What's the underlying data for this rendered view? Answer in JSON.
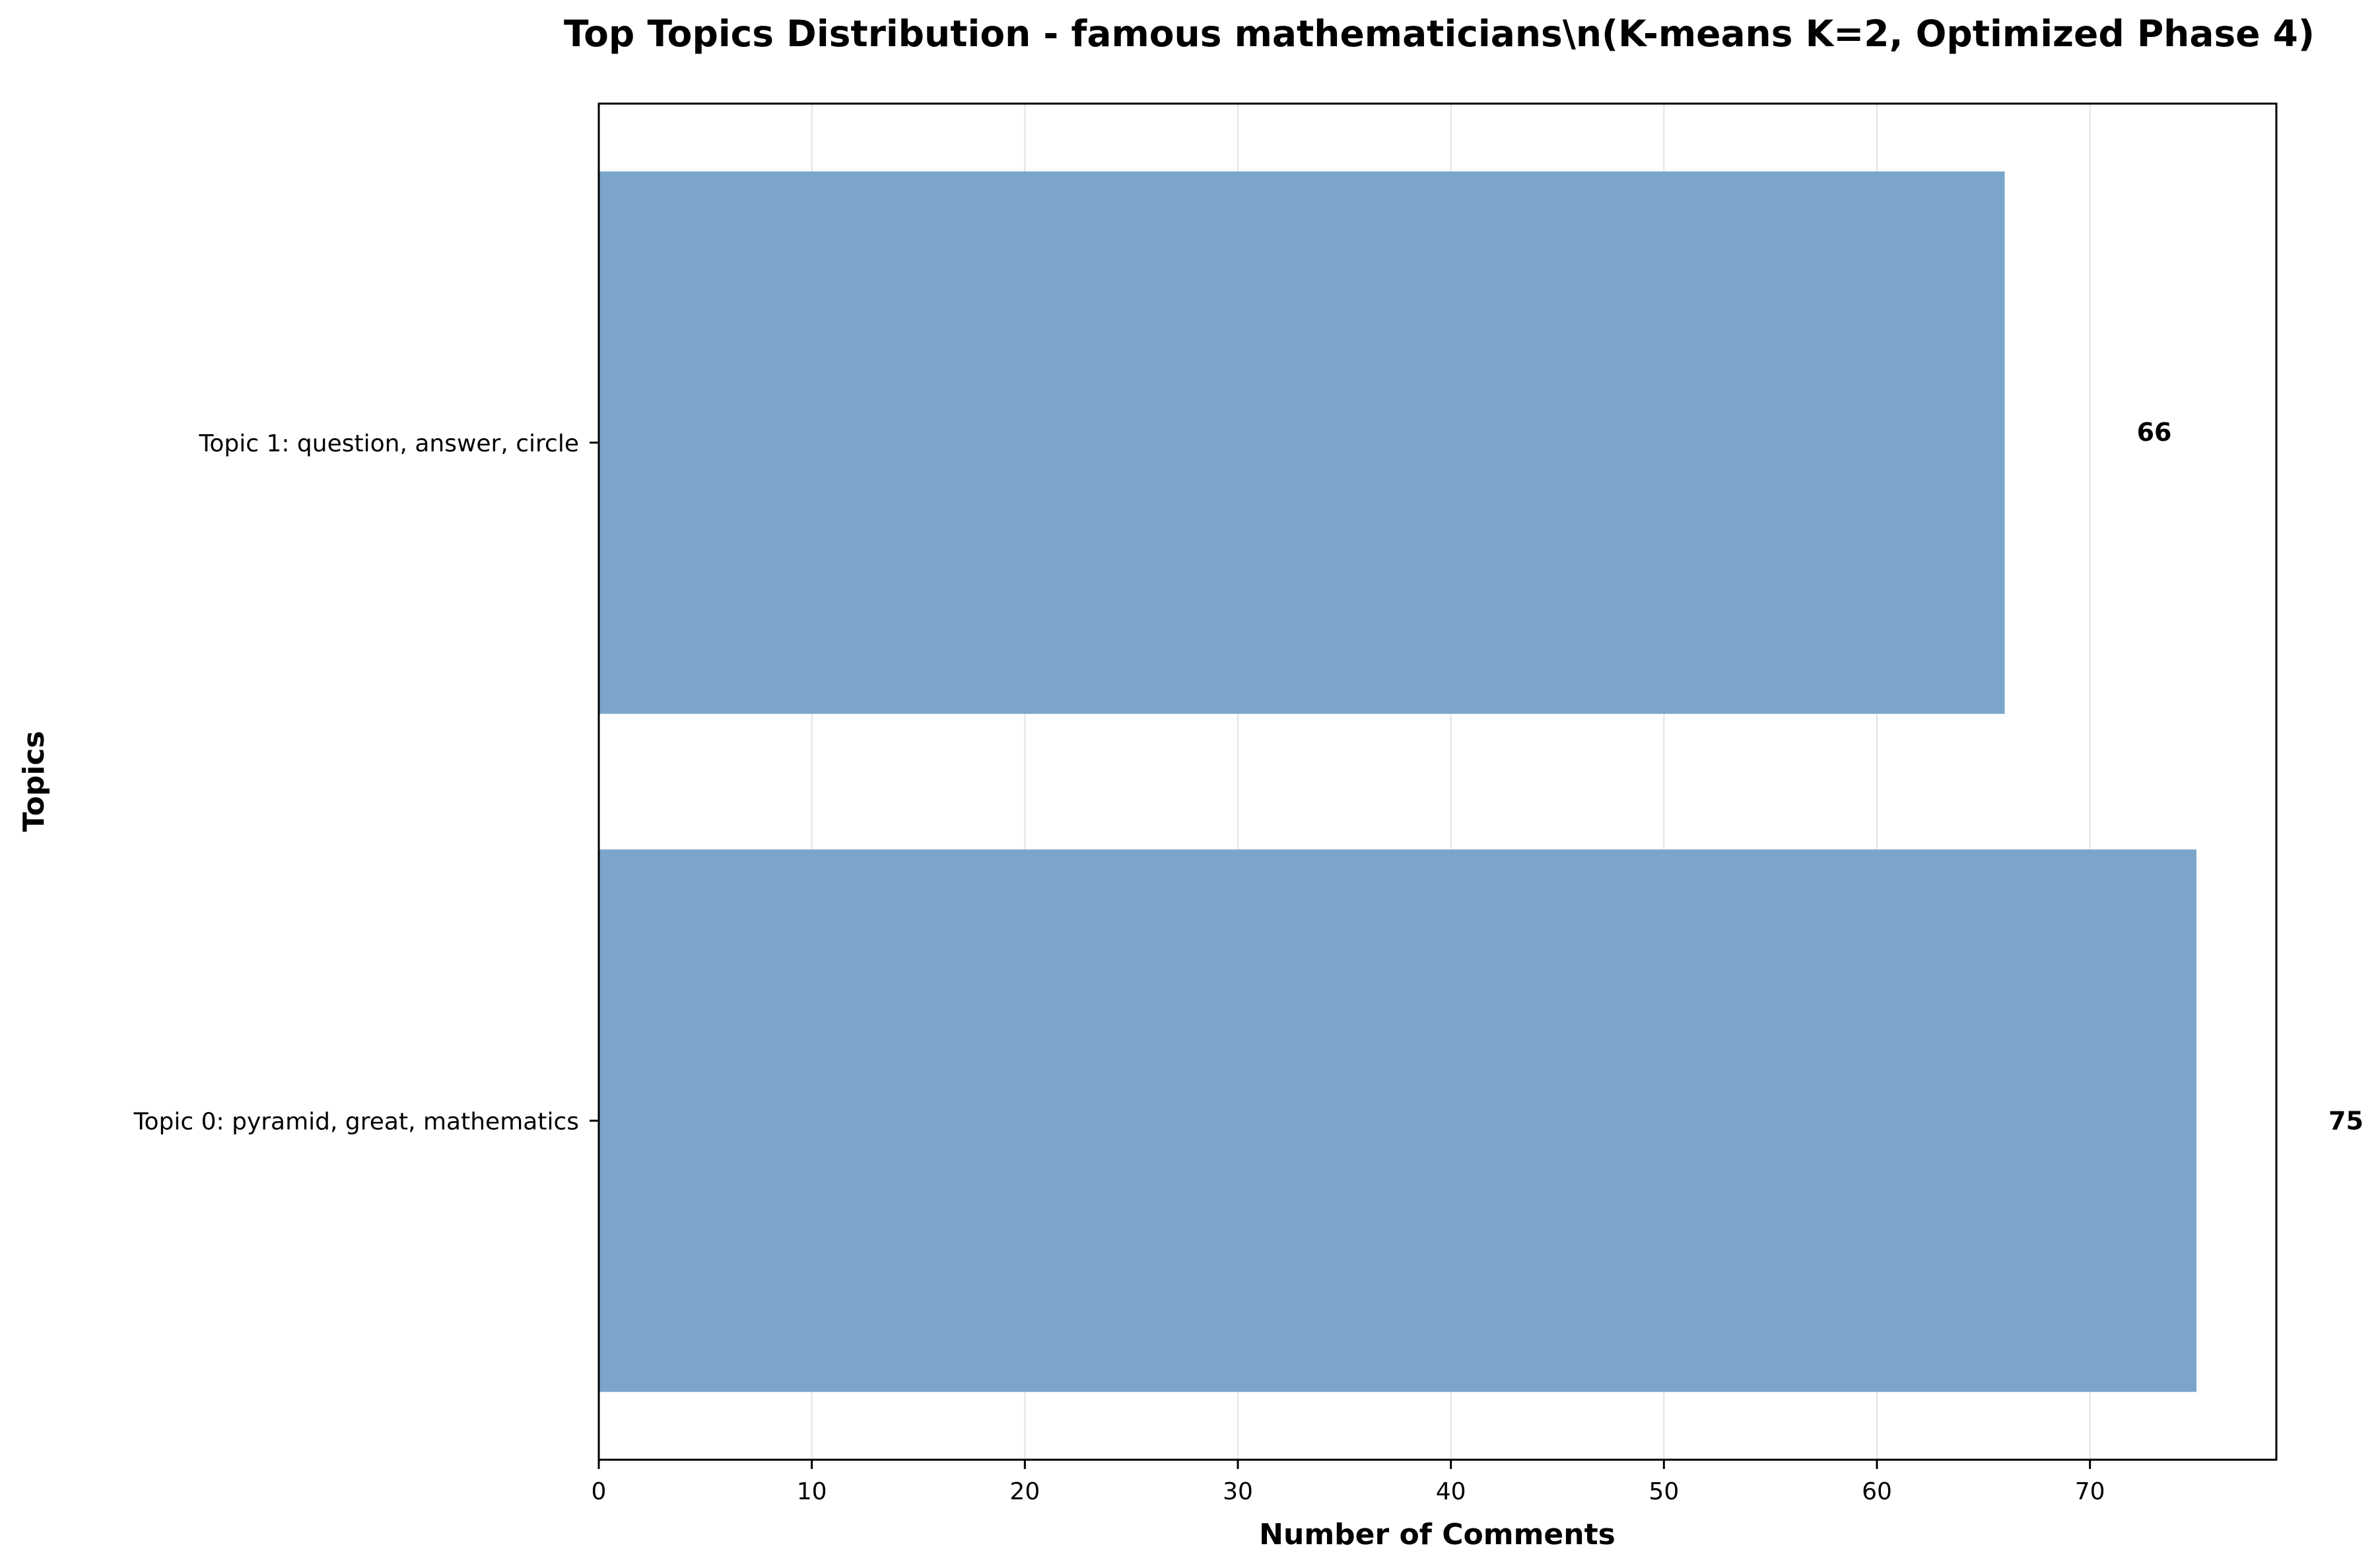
{
  "chart_data": {
    "type": "bar",
    "orientation": "horizontal",
    "title": "Top Topics Distribution - famous mathematicians\\n(K-means K=2, Optimized Phase 4)",
    "xlabel": "Number of Comments",
    "ylabel": "Topics",
    "categories": [
      "Topic 1: question, answer, circle",
      "Topic 0: pyramid, great, mathematics"
    ],
    "values": [
      66,
      75
    ],
    "data_labels": [
      "66",
      "75"
    ],
    "xlim": [
      0,
      78.75
    ],
    "xticks": [
      0,
      10,
      20,
      30,
      40,
      50,
      60,
      70
    ],
    "xtick_labels": [
      "0",
      "10",
      "20",
      "30",
      "40",
      "50",
      "60",
      "70"
    ],
    "grid": "x-axis vertical lines",
    "legend": "none",
    "bar_color": "#7BA6CA",
    "grid_color": "#E3E3E3",
    "axis_color": "#000000"
  }
}
